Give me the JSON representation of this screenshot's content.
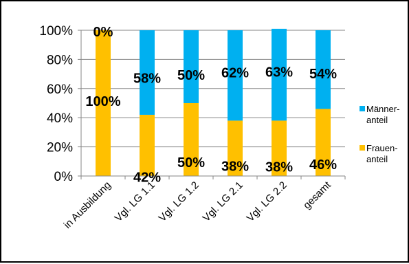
{
  "chart_data": {
    "type": "bar",
    "stacked": true,
    "percent_stacked": true,
    "categories": [
      "in Ausbildung",
      "Vgl. LG 1.1",
      "Vgl. LG 1.2",
      "Vgl. LG 2.1",
      "Vgl. LG 2.2",
      "gesamt"
    ],
    "series": [
      {
        "name": "Frauen-anteil",
        "legend_lines": [
          "Frauen-",
          "anteil"
        ],
        "color": "#FFC000",
        "values": [
          100,
          42,
          50,
          38,
          38,
          46
        ],
        "labels": [
          "100%",
          "42%",
          "50%",
          "38%",
          "38%",
          "46%"
        ]
      },
      {
        "name": "Männer-anteil",
        "legend_lines": [
          "Männer-",
          "anteil"
        ],
        "color": "#00B0F0",
        "values": [
          0,
          58,
          50,
          62,
          63,
          54
        ],
        "labels": [
          "0%",
          "58%",
          "50%",
          "62%",
          "63%",
          "54%"
        ]
      }
    ],
    "y_ticks": [
      "0%",
      "20%",
      "40%",
      "60%",
      "80%",
      "100%"
    ],
    "ylim": [
      0,
      100
    ],
    "grid": true,
    "legend_position": "right",
    "title": "",
    "xlabel": "",
    "ylabel": ""
  }
}
